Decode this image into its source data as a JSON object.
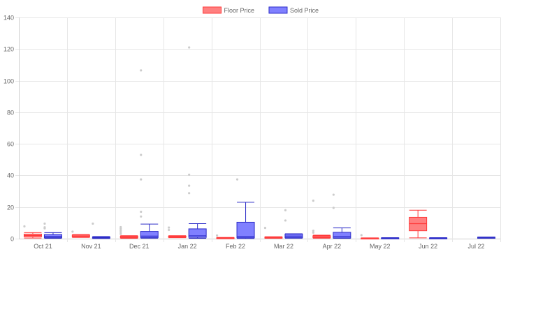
{
  "chart_data": {
    "type": "boxplot",
    "categories": [
      "Oct 21",
      "Nov 21",
      "Dec 21",
      "Jan 22",
      "Feb 22",
      "Mar 22",
      "Apr 22",
      "May 22",
      "Jun 22",
      "Jul 22"
    ],
    "ylim": [
      0,
      140
    ],
    "yticks": [
      0,
      20,
      40,
      60,
      80,
      100,
      120,
      140
    ],
    "grid": true,
    "legend_position": "top",
    "series": [
      {
        "name": "Floor Price",
        "fill": "#ff8080",
        "stroke": "#ff3b3b",
        "boxes": [
          {
            "min": 0.4,
            "q1": 1.2,
            "median": 2.0,
            "q3": 2.9,
            "max": 3.8,
            "outliers": [
              7.8
            ]
          },
          {
            "min": 0.8,
            "q1": 1.0,
            "median": 1.6,
            "q3": 2.3,
            "max": 2.6,
            "outliers": [
              4.4
            ]
          },
          {
            "min": 0.2,
            "q1": 0.6,
            "median": 1.0,
            "q3": 1.6,
            "max": 1.9,
            "outliers": [
              3.0,
              4.2,
              5.2,
              6.3,
              7.3
            ]
          },
          {
            "min": 0.6,
            "q1": 0.9,
            "median": 1.2,
            "q3": 1.6,
            "max": 1.9,
            "outliers": [
              5.5,
              7.0
            ]
          },
          {
            "min": 0.1,
            "q1": 0.2,
            "median": 0.4,
            "q3": 0.6,
            "max": 0.8,
            "outliers": [
              2.0
            ]
          },
          {
            "min": 0.2,
            "q1": 0.4,
            "median": 0.7,
            "q3": 1.0,
            "max": 1.2,
            "outliers": [
              6.8
            ]
          },
          {
            "min": 0.3,
            "q1": 0.6,
            "median": 1.0,
            "q3": 1.8,
            "max": 2.2,
            "outliers": [
              3.8,
              5.0,
              24.0
            ]
          },
          {
            "min": 0.1,
            "q1": 0.2,
            "median": 0.3,
            "q3": 0.4,
            "max": 0.5,
            "outliers": [
              2.2
            ]
          },
          {
            "min": 0.5,
            "q1": 5.0,
            "median": 9.5,
            "q3": 13.5,
            "max": 18.0,
            "outliers": []
          },
          null
        ]
      },
      {
        "name": "Sold Price",
        "fill": "#8080ff",
        "stroke": "#2c2cc8",
        "boxes": [
          {
            "min": 0.2,
            "q1": 0.6,
            "median": 1.5,
            "q3": 2.6,
            "max": 3.8,
            "outliers": [
              6.5,
              7.2,
              9.5
            ]
          },
          {
            "min": 0.1,
            "q1": 0.3,
            "median": 0.6,
            "q3": 1.0,
            "max": 1.3,
            "outliers": [
              9.5
            ]
          },
          {
            "min": 0.3,
            "q1": 0.7,
            "median": 1.6,
            "q3": 4.6,
            "max": 9.2,
            "outliers": [
              14.0,
              17.0,
              37.5,
              53.0,
              106.5
            ]
          },
          {
            "min": 0.2,
            "q1": 0.8,
            "median": 1.8,
            "q3": 6.2,
            "max": 9.5,
            "outliers": [
              28.8,
              33.5,
              40.5,
              121.0
            ]
          },
          {
            "min": 0.1,
            "q1": 0.5,
            "median": 1.2,
            "q3": 10.4,
            "max": 23.0,
            "outliers": [
              37.5
            ]
          },
          {
            "min": 0.3,
            "q1": 0.6,
            "median": 1.6,
            "q3": 2.9,
            "max": 3.1,
            "outliers": [
              11.5,
              18.0
            ]
          },
          {
            "min": 0.2,
            "q1": 0.4,
            "median": 1.2,
            "q3": 4.0,
            "max": 6.8,
            "outliers": [
              19.5,
              27.8
            ]
          },
          {
            "min": 0.1,
            "q1": 0.2,
            "median": 0.3,
            "q3": 0.5,
            "max": 0.6,
            "outliers": []
          },
          {
            "min": 0.1,
            "q1": 0.2,
            "median": 0.3,
            "q3": 0.5,
            "max": 0.6,
            "outliers": []
          },
          {
            "min": 0.3,
            "q1": 0.5,
            "median": 0.7,
            "q3": 0.9,
            "max": 1.0,
            "outliers": []
          }
        ]
      }
    ]
  }
}
